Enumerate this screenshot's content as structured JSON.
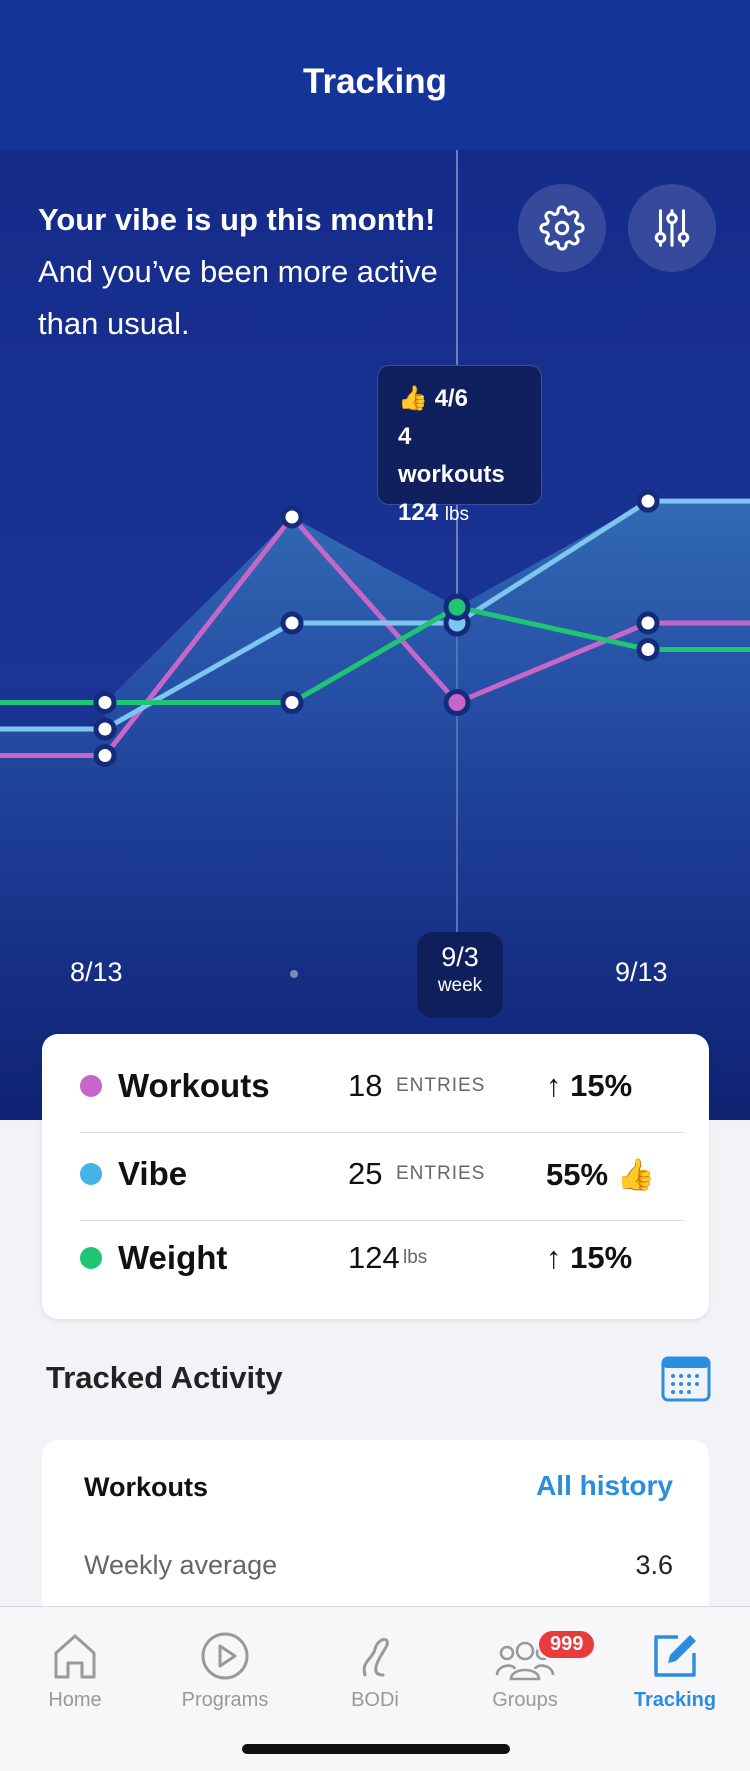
{
  "header": {
    "title": "Tracking"
  },
  "hero": {
    "bold": "Your vibe is up this month!",
    "rest": " And you’ve been more active than usual."
  },
  "buttons": {
    "settings_icon": "gear-icon",
    "filter_icon": "sliders-icon"
  },
  "tooltip": {
    "date": "4/6",
    "workouts_count": "4",
    "workouts_label": "workouts",
    "weight_value": "124",
    "weight_unit": "lbs"
  },
  "chart_data": {
    "type": "line",
    "x_labels": [
      "8/13",
      "9/3",
      "9/13"
    ],
    "selected_label": {
      "date": "9/3",
      "period": "week"
    },
    "series": [
      {
        "name": "Workouts",
        "color": "#c766c9",
        "values": [
          1.5,
          6.0,
          2.5,
          4.0
        ]
      },
      {
        "name": "Vibe",
        "color": "#7ec6ef",
        "values": [
          2.0,
          4.0,
          4.0,
          6.3
        ]
      },
      {
        "name": "Weight",
        "color": "#1ec573",
        "values": [
          2.5,
          2.5,
          4.3,
          3.5
        ]
      }
    ]
  },
  "summary": [
    {
      "name": "Workouts",
      "color": "#c766c9",
      "num": "18",
      "unit": "ENTRIES",
      "pct": "↑ 15%"
    },
    {
      "name": "Vibe",
      "color": "#45b3e6",
      "num": "25",
      "unit": "ENTRIES",
      "pct": "55% 👍"
    },
    {
      "name": "Weight",
      "color": "#1ec573",
      "num": "124",
      "unit": "lbs",
      "pct": "↑ 15%"
    }
  ],
  "tracked": {
    "title": "Tracked Activity",
    "card_title": "Workouts",
    "link": "All history",
    "avg_label": "Weekly average",
    "avg_value": "3.6"
  },
  "tabs": [
    {
      "label": "Home",
      "icon": "home-icon"
    },
    {
      "label": "Programs",
      "icon": "play-icon"
    },
    {
      "label": "BODi",
      "icon": "bodi-logo-icon"
    },
    {
      "label": "Groups",
      "icon": "groups-icon",
      "badge": "999"
    },
    {
      "label": "Tracking",
      "icon": "edit-icon",
      "active": true
    }
  ],
  "colors": {
    "accent": "#2a8de0",
    "header": "#15349a"
  }
}
